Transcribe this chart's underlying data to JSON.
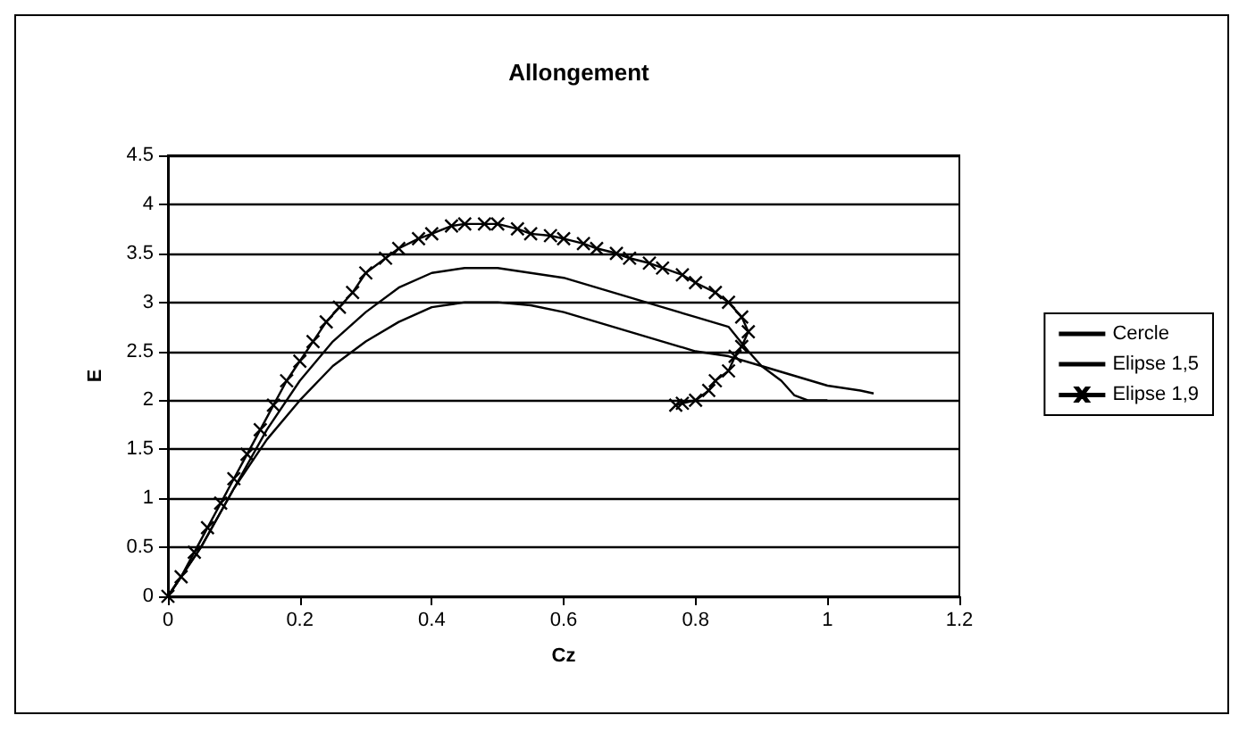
{
  "chart_data": {
    "type": "line",
    "title": "Allongement",
    "xlabel": "Cz",
    "ylabel": "E",
    "xlim": [
      0,
      1.2
    ],
    "xticks": [
      0,
      0.2,
      0.4,
      0.6,
      0.8,
      1,
      1.2
    ],
    "ylim": [
      0,
      4.5
    ],
    "yticks": [
      0,
      0.5,
      1,
      1.5,
      2,
      2.5,
      3,
      3.5,
      4,
      4.5
    ],
    "grid": "y",
    "legend": "right",
    "line_style": "solid",
    "series": [
      {
        "name": "Cercle",
        "color": "#000000",
        "marker": "none",
        "x": [
          0,
          0.05,
          0.1,
          0.15,
          0.2,
          0.25,
          0.3,
          0.35,
          0.4,
          0.45,
          0.5,
          0.55,
          0.6,
          0.65,
          0.7,
          0.75,
          0.8,
          0.85,
          0.9,
          0.95,
          1.0,
          1.05,
          1.07
        ],
        "values": [
          0,
          0.5,
          1.1,
          1.6,
          2.0,
          2.35,
          2.6,
          2.8,
          2.95,
          3.0,
          3.0,
          2.97,
          2.9,
          2.8,
          2.7,
          2.6,
          2.5,
          2.45,
          2.35,
          2.25,
          2.15,
          2.1,
          2.07
        ]
      },
      {
        "name": "Elipse 1,5",
        "color": "#000000",
        "marker": "none",
        "x": [
          0,
          0.05,
          0.1,
          0.15,
          0.2,
          0.25,
          0.3,
          0.35,
          0.4,
          0.45,
          0.5,
          0.55,
          0.6,
          0.65,
          0.7,
          0.75,
          0.8,
          0.85,
          0.88,
          0.9,
          0.93,
          0.95,
          0.97,
          1.0
        ],
        "values": [
          0,
          0.5,
          1.1,
          1.7,
          2.2,
          2.6,
          2.9,
          3.15,
          3.3,
          3.35,
          3.35,
          3.3,
          3.25,
          3.15,
          3.05,
          2.95,
          2.85,
          2.75,
          2.5,
          2.35,
          2.2,
          2.05,
          2.0,
          2.0
        ]
      },
      {
        "name": "Elipse 1,9",
        "color": "#000000",
        "marker": "cross",
        "x": [
          0,
          0.02,
          0.04,
          0.06,
          0.08,
          0.1,
          0.12,
          0.14,
          0.16,
          0.18,
          0.2,
          0.22,
          0.24,
          0.26,
          0.28,
          0.3,
          0.33,
          0.35,
          0.38,
          0.4,
          0.43,
          0.45,
          0.48,
          0.5,
          0.53,
          0.55,
          0.58,
          0.6,
          0.63,
          0.65,
          0.68,
          0.7,
          0.73,
          0.75,
          0.78,
          0.8,
          0.83,
          0.85,
          0.87,
          0.88,
          0.87,
          0.86,
          0.85,
          0.83,
          0.82,
          0.8,
          0.78,
          0.77
        ],
        "values": [
          0,
          0.2,
          0.45,
          0.7,
          0.95,
          1.2,
          1.45,
          1.7,
          1.95,
          2.2,
          2.4,
          2.6,
          2.8,
          2.95,
          3.1,
          3.3,
          3.45,
          3.55,
          3.65,
          3.7,
          3.78,
          3.8,
          3.8,
          3.8,
          3.75,
          3.7,
          3.68,
          3.65,
          3.6,
          3.55,
          3.5,
          3.45,
          3.4,
          3.35,
          3.28,
          3.2,
          3.1,
          3.0,
          2.85,
          2.7,
          2.55,
          2.45,
          2.3,
          2.2,
          2.1,
          2.0,
          1.97,
          1.95
        ]
      }
    ]
  }
}
